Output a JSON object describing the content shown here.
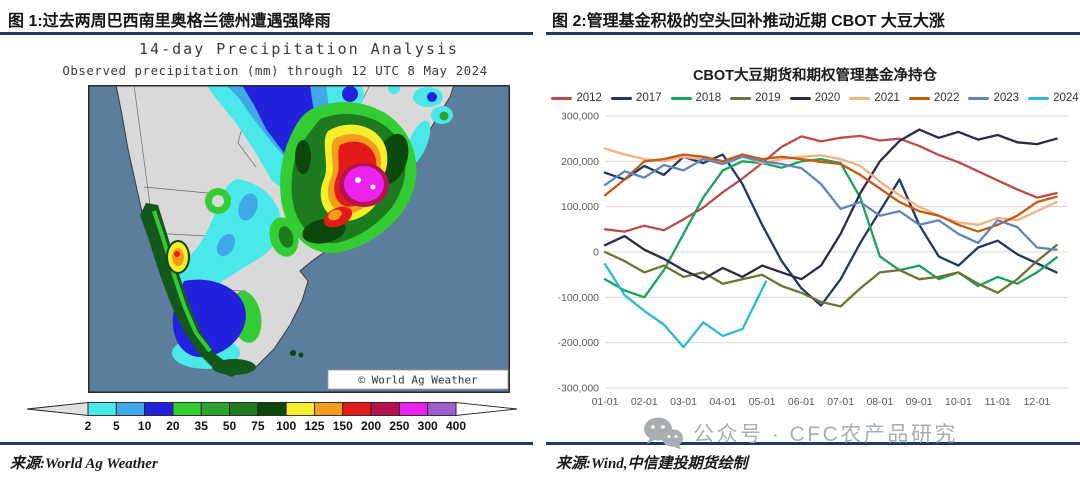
{
  "left_panel": {
    "figure_label": "图 1:过去两周巴西南里奥格兰德州遭遇强降雨",
    "map": {
      "title": "14-day Precipitation Analysis",
      "subtitle": "Observed precipitation (mm) through 12 UTC 8 May 2024",
      "watermark": "© World Ag Weather",
      "scale": {
        "labels": [
          "2",
          "5",
          "10",
          "20",
          "35",
          "50",
          "75",
          "100",
          "125",
          "150",
          "200",
          "250",
          "300",
          "400"
        ],
        "colors": [
          "#4AE8E8",
          "#3FA8E8",
          "#2222DD",
          "#33CC33",
          "#2EA22E",
          "#1E7A1E",
          "#0C470C",
          "#F5EE2C",
          "#F59C1D",
          "#E31A1A",
          "#B3134F",
          "#EE22EE",
          "#9E5FCE"
        ]
      }
    },
    "source": "来源:World Ag Weather"
  },
  "right_panel": {
    "figure_label": "图 2:管理基金积极的空头回补推动近期 CBOT 大豆大涨",
    "source": "来源:Wind,中信建投期货绘制"
  },
  "watermark": {
    "text": "公众号 · CFC农产品研究"
  },
  "chart_data": {
    "type": "line",
    "title": "CBOT大豆期货和期权管理基金净持仓",
    "xlabel": "",
    "ylabel": "",
    "ylim": [
      -300000,
      300000
    ],
    "grid": true,
    "legend_position": "top",
    "y_ticks": [
      "300,000",
      "200,000",
      "100,000",
      "0",
      "-100,000",
      "-200,000",
      "-300,000"
    ],
    "x_ticks": [
      "01-01",
      "02-01",
      "03-01",
      "04-01",
      "05-01",
      "06-01",
      "07-01",
      "08-01",
      "09-01",
      "10-01",
      "11-01",
      "12-01"
    ],
    "x_unit": "month-of-year (0 = Jan 1)",
    "x_semimonthly": [
      0,
      0.5,
      1,
      1.5,
      2,
      2.5,
      3,
      3.5,
      4,
      4.5,
      5,
      5.5,
      6,
      6.5,
      7,
      7.5,
      8,
      8.5,
      9,
      9.5,
      10,
      10.5,
      11,
      11.5
    ],
    "series": [
      {
        "name": "2012",
        "color": "#BE4B48",
        "values": [
          50000,
          45000,
          58000,
          48000,
          72000,
          98000,
          132000,
          162000,
          196000,
          232000,
          255000,
          244000,
          252000,
          256000,
          246000,
          250000,
          234000,
          214000,
          198000,
          178000,
          158000,
          138000,
          120000,
          130000
        ]
      },
      {
        "name": "2017",
        "color": "#1F3864",
        "values": [
          175000,
          160000,
          190000,
          170000,
          210000,
          196000,
          215000,
          150000,
          60000,
          -20000,
          -80000,
          -118000,
          -60000,
          20000,
          90000,
          160000,
          60000,
          -10000,
          -30000,
          10000,
          25000,
          -5000,
          -25000,
          -45000
        ]
      },
      {
        "name": "2018",
        "color": "#18A45A",
        "values": [
          -60000,
          -85000,
          -100000,
          -40000,
          40000,
          120000,
          180000,
          200000,
          196000,
          186000,
          200000,
          205000,
          196000,
          120000,
          -10000,
          -40000,
          -30000,
          -60000,
          -45000,
          -75000,
          -55000,
          -70000,
          -45000,
          -12000
        ]
      },
      {
        "name": "2019",
        "color": "#6E7430",
        "values": [
          0,
          -20000,
          -45000,
          -30000,
          -55000,
          -45000,
          -70000,
          -60000,
          -50000,
          -75000,
          -90000,
          -110000,
          -120000,
          -80000,
          -45000,
          -40000,
          -60000,
          -55000,
          -45000,
          -70000,
          -90000,
          -60000,
          -20000,
          15000
        ]
      },
      {
        "name": "2020",
        "color": "#2B2B45",
        "values": [
          15000,
          35000,
          5000,
          -15000,
          -40000,
          -60000,
          -35000,
          -55000,
          -30000,
          -45000,
          -60000,
          -30000,
          40000,
          130000,
          200000,
          245000,
          270000,
          252000,
          265000,
          248000,
          258000,
          242000,
          238000,
          250000
        ]
      },
      {
        "name": "2021",
        "color": "#F4B183",
        "values": [
          228000,
          215000,
          205000,
          200000,
          210000,
          204000,
          199000,
          211000,
          196000,
          205000,
          210000,
          213000,
          205000,
          190000,
          155000,
          125000,
          100000,
          80000,
          65000,
          60000,
          75000,
          70000,
          90000,
          110000
        ]
      },
      {
        "name": "2022",
        "color": "#C55A11",
        "values": [
          125000,
          160000,
          200000,
          205000,
          215000,
          210000,
          200000,
          215000,
          205000,
          210000,
          205000,
          199000,
          194000,
          170000,
          140000,
          110000,
          90000,
          80000,
          60000,
          45000,
          60000,
          80000,
          110000,
          122000
        ]
      },
      {
        "name": "2023",
        "color": "#5E86BC",
        "values": [
          148000,
          178000,
          164000,
          192000,
          180000,
          205000,
          194000,
          210000,
          200000,
          194000,
          185000,
          150000,
          95000,
          110000,
          80000,
          90000,
          60000,
          70000,
          40000,
          20000,
          70000,
          55000,
          10000,
          5000
        ]
      },
      {
        "name": "2024",
        "color": "#29B8DF",
        "x": [
          0,
          0.5,
          1,
          1.5,
          2,
          2.5,
          3,
          3.5,
          4.1
        ],
        "values": [
          -27000,
          -95000,
          -130000,
          -160000,
          -210000,
          -155000,
          -185000,
          -170000,
          -65000
        ]
      }
    ]
  }
}
